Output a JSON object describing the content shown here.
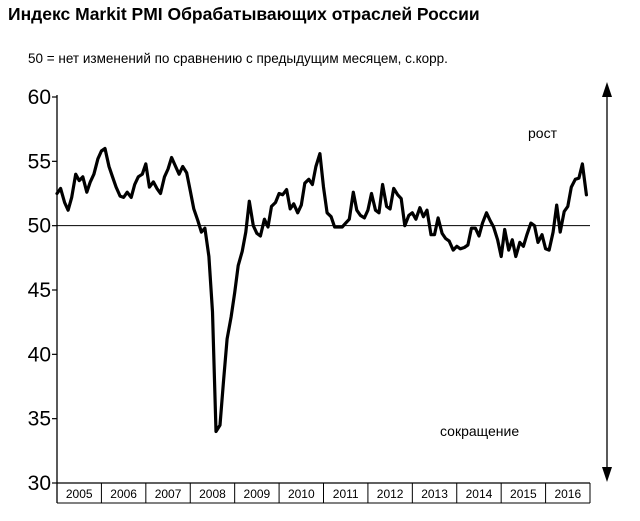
{
  "chart_data": {
    "type": "line",
    "title": "Индекс Markit PMI Обрабатывающих отраслей России",
    "subtitle": "50 = нет изменений по сравнению с предыдущим месяцем, с.корр.",
    "xlabel": "",
    "ylabel": "",
    "ylim": [
      30,
      60
    ],
    "yticks": [
      30,
      35,
      40,
      45,
      50,
      55,
      60
    ],
    "x_range": [
      2005,
      2017
    ],
    "year_labels": [
      "2005",
      "2006",
      "2007",
      "2008",
      "2009",
      "2010",
      "2011",
      "2012",
      "2013",
      "2014",
      "2015",
      "2016"
    ],
    "reference_line": 50,
    "annotations": {
      "up": "рост",
      "down": "сокращение"
    },
    "line_color": "#000000",
    "grid": false,
    "legend": "none",
    "series": [
      {
        "x": [
          2005.0,
          2005.08,
          2005.17,
          2005.25,
          2005.33,
          2005.42,
          2005.5,
          2005.58,
          2005.67,
          2005.75,
          2005.83,
          2005.92,
          2006.0,
          2006.08,
          2006.17,
          2006.25,
          2006.33,
          2006.42,
          2006.5,
          2006.58,
          2006.67,
          2006.75,
          2006.83,
          2006.92,
          2007.0,
          2007.08,
          2007.17,
          2007.25,
          2007.33,
          2007.42,
          2007.5,
          2007.58,
          2007.67,
          2007.75,
          2007.83,
          2007.92,
          2008.0,
          2008.08,
          2008.17,
          2008.25,
          2008.33,
          2008.42,
          2008.5,
          2008.58,
          2008.67,
          2008.75,
          2008.83,
          2008.92,
          2009.0,
          2009.08,
          2009.17,
          2009.25,
          2009.33,
          2009.42,
          2009.5,
          2009.58,
          2009.67,
          2009.75,
          2009.83,
          2009.92,
          2010.0,
          2010.08,
          2010.17,
          2010.25,
          2010.33,
          2010.42,
          2010.5,
          2010.58,
          2010.67,
          2010.75,
          2010.83,
          2010.92,
          2011.0,
          2011.08,
          2011.17,
          2011.25,
          2011.33,
          2011.42,
          2011.5,
          2011.58,
          2011.67,
          2011.75,
          2011.83,
          2011.92,
          2012.0,
          2012.08,
          2012.17,
          2012.25,
          2012.33,
          2012.42,
          2012.5,
          2012.58,
          2012.67,
          2012.75,
          2012.83,
          2012.92,
          2013.0,
          2013.08,
          2013.17,
          2013.25,
          2013.33,
          2013.42,
          2013.5,
          2013.58,
          2013.67,
          2013.75,
          2013.83,
          2013.92,
          2014.0,
          2014.08,
          2014.17,
          2014.25,
          2014.33,
          2014.42,
          2014.5,
          2014.58,
          2014.67,
          2014.75,
          2014.83,
          2014.92,
          2015.0,
          2015.08,
          2015.17,
          2015.25,
          2015.33,
          2015.42,
          2015.5,
          2015.58,
          2015.67,
          2015.75,
          2015.83,
          2015.92,
          2016.0,
          2016.08,
          2016.17,
          2016.25,
          2016.33,
          2016.42,
          2016.5,
          2016.58,
          2016.67,
          2016.75,
          2016.83,
          2016.92
        ],
        "values": [
          52.5,
          52.9,
          51.8,
          51.2,
          52.2,
          54.0,
          53.5,
          53.8,
          52.6,
          53.4,
          54.0,
          55.2,
          55.8,
          56.0,
          54.6,
          53.8,
          53.0,
          52.3,
          52.2,
          52.6,
          52.2,
          53.2,
          53.8,
          54.0,
          54.8,
          53.0,
          53.4,
          52.9,
          52.5,
          53.8,
          54.4,
          55.3,
          54.6,
          54.0,
          54.6,
          54.1,
          52.7,
          51.3,
          50.4,
          49.5,
          49.8,
          47.6,
          43.3,
          34.0,
          34.5,
          38.0,
          41.2,
          42.9,
          44.8,
          46.9,
          48.0,
          49.5,
          51.9,
          50.0,
          49.4,
          49.2,
          50.5,
          49.9,
          51.5,
          51.8,
          52.5,
          52.4,
          52.8,
          51.3,
          51.7,
          51.0,
          51.6,
          53.3,
          53.6,
          53.2,
          54.6,
          55.6,
          53.0,
          51.0,
          50.7,
          49.9,
          49.9,
          49.9,
          50.2,
          50.5,
          52.6,
          51.2,
          50.8,
          50.6,
          51.2,
          52.5,
          51.2,
          51.0,
          53.2,
          51.5,
          51.3,
          52.9,
          52.4,
          52.1,
          50.0,
          50.8,
          51.0,
          50.5,
          51.4,
          50.7,
          51.2,
          49.3,
          49.3,
          50.6,
          49.4,
          49.0,
          48.8,
          48.1,
          48.4,
          48.2,
          48.3,
          48.5,
          49.8,
          49.8,
          49.2,
          50.2,
          51.0,
          50.4,
          49.9,
          48.9,
          47.6,
          49.7,
          48.1,
          48.9,
          47.6,
          48.7,
          48.4,
          49.3,
          50.2,
          50.0,
          48.7,
          49.3,
          48.2,
          48.1,
          49.5,
          51.6,
          49.5,
          51.1,
          51.5,
          53.0,
          53.6,
          53.7,
          54.8,
          52.4
        ]
      }
    ]
  }
}
